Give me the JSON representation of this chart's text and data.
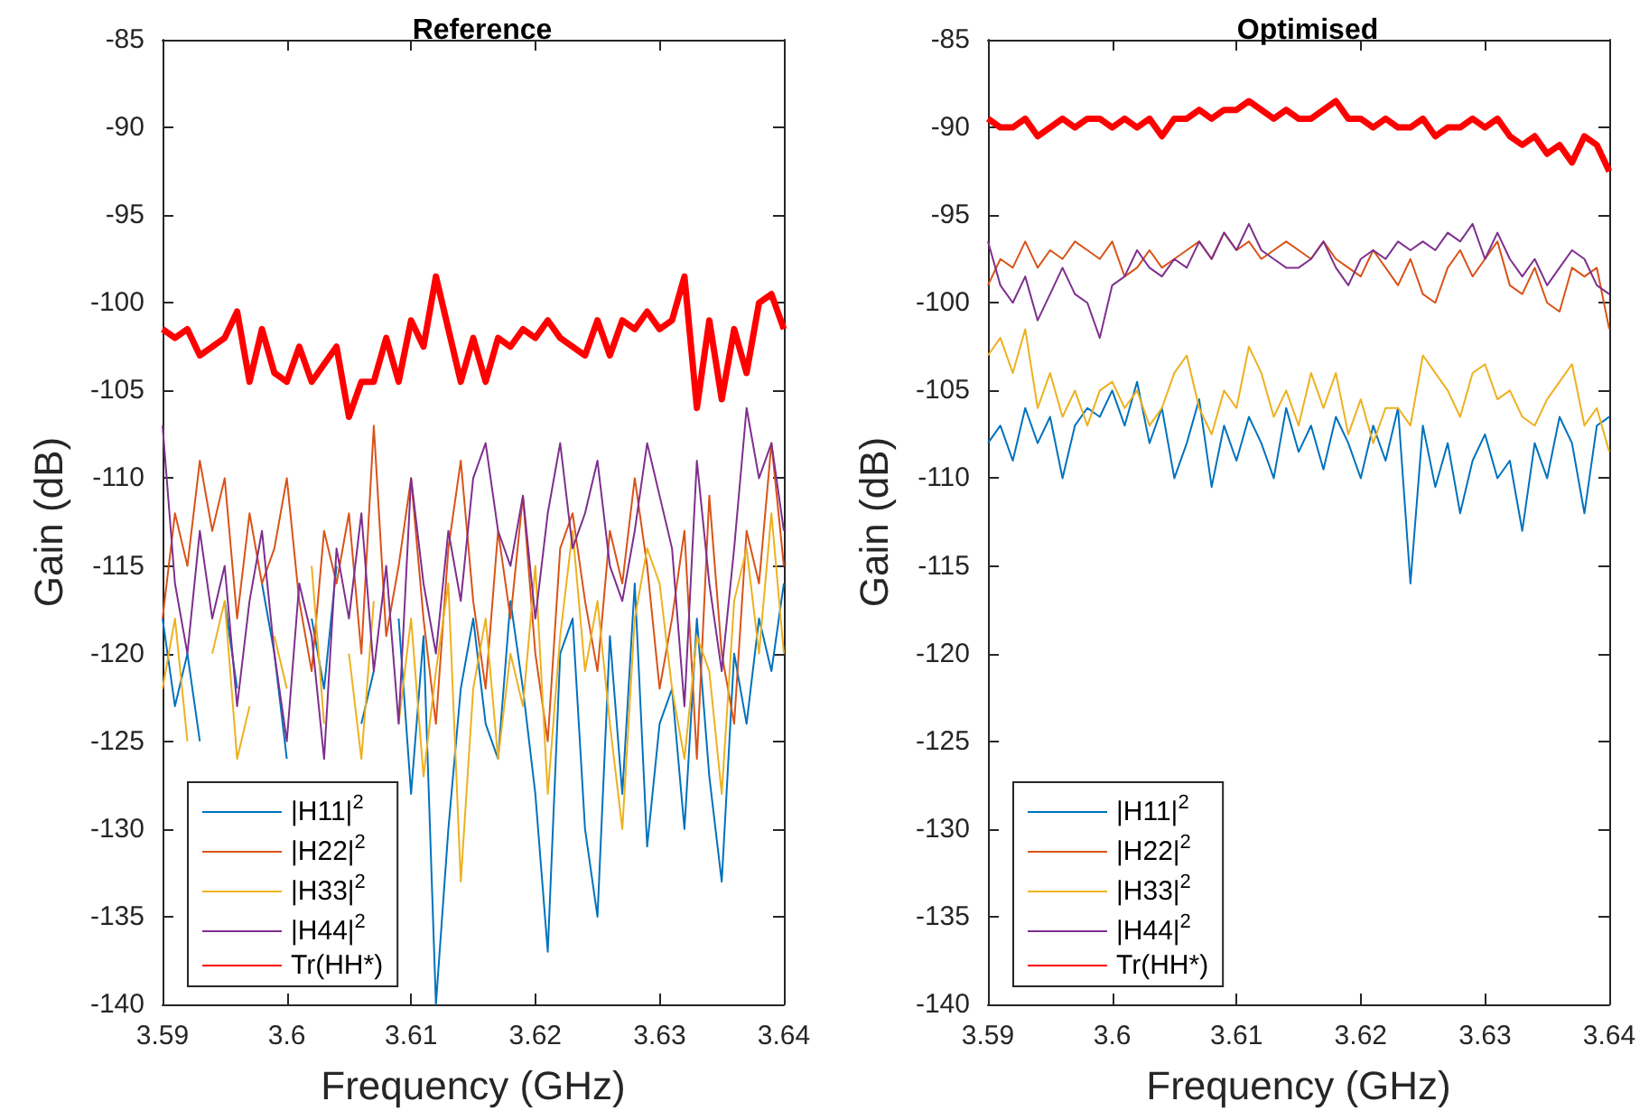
{
  "chart_data": [
    {
      "type": "line",
      "title": "Reference",
      "xlabel": "Frequency (GHz)",
      "ylabel": "Gain (dB)",
      "xlim": [
        3.59,
        3.64
      ],
      "xticks": [
        3.59,
        3.6,
        3.61,
        3.62,
        3.63,
        3.64
      ],
      "ylim": [
        -140,
        -85
      ],
      "yticks": [
        -140,
        -135,
        -130,
        -125,
        -120,
        -115,
        -110,
        -105,
        -100,
        -95,
        -90,
        -85
      ],
      "grid": false,
      "legend": "bottom left",
      "marker": "none",
      "line_style": "solid",
      "x": [
        3.59,
        3.591,
        3.592,
        3.593,
        3.594,
        3.595,
        3.596,
        3.597,
        3.598,
        3.599,
        3.6,
        3.601,
        3.602,
        3.603,
        3.604,
        3.605,
        3.606,
        3.607,
        3.608,
        3.609,
        3.61,
        3.611,
        3.612,
        3.613,
        3.614,
        3.615,
        3.616,
        3.617,
        3.618,
        3.619,
        3.62,
        3.621,
        3.622,
        3.623,
        3.624,
        3.625,
        3.626,
        3.627,
        3.628,
        3.629,
        3.63,
        3.631,
        3.632,
        3.633,
        3.634,
        3.635,
        3.636,
        3.637,
        3.638,
        3.639,
        3.64
      ],
      "series": [
        {
          "name": "|H11|$^{2}$",
          "color": "#0072bd",
          "values": [
            -118,
            -123,
            -120,
            -125,
            null,
            -117,
            -122,
            null,
            -116,
            -120,
            -126,
            null,
            -118,
            -122,
            -115,
            null,
            -124,
            -121,
            null,
            -118,
            -128,
            -119,
            -140,
            -130,
            -122,
            -118,
            -124,
            -126,
            -117,
            -122,
            -128,
            -137,
            -120,
            -118,
            -130,
            -135,
            -119,
            -128,
            -116,
            -131,
            -124,
            -122,
            -130,
            -118,
            -127,
            -133,
            -120,
            -124,
            -118,
            -121,
            -116
          ]
        },
        {
          "name": "|H22|$^{2}$",
          "color": "#d95319",
          "values": [
            -118,
            -112,
            -115,
            -109,
            -113,
            -110,
            -118,
            -112,
            -116,
            -114,
            -110,
            -117,
            -121,
            -113,
            -116,
            -112,
            -120,
            -107,
            -119,
            -115,
            -110,
            -118,
            -124,
            -114,
            -109,
            -117,
            -122,
            -113,
            -118,
            -111,
            -120,
            -125,
            -114,
            -112,
            -117,
            -121,
            -113,
            -116,
            -110,
            -115,
            -122,
            -118,
            -113,
            -126,
            -111,
            -120,
            -124,
            -113,
            -116,
            -108,
            -115
          ]
        },
        {
          "name": "|H33|$^{2}$",
          "color": "#edb120",
          "values": [
            -122,
            -118,
            -125,
            null,
            -120,
            -117,
            -126,
            -123,
            null,
            -119,
            -122,
            null,
            -115,
            -124,
            null,
            -120,
            -126,
            -117,
            null,
            -124,
            -118,
            -127,
            -121,
            -116,
            -133,
            -122,
            -118,
            -126,
            -120,
            -123,
            -115,
            -128,
            -119,
            -113,
            -121,
            -117,
            -124,
            -130,
            -118,
            -114,
            -116,
            -122,
            -126,
            -119,
            -121,
            -128,
            -117,
            -114,
            -120,
            -112,
            -120
          ]
        },
        {
          "name": "|H44|$^{2}$",
          "color": "#7e2f8e",
          "values": [
            -107,
            -116,
            -120,
            -113,
            -118,
            -115,
            -123,
            -117,
            -113,
            -120,
            -125,
            -116,
            -119,
            -126,
            -114,
            -118,
            -112,
            -121,
            -115,
            -124,
            -110,
            -116,
            -120,
            -113,
            -117,
            -110,
            -108,
            -113,
            -115,
            -111,
            -118,
            -112,
            -108,
            -114,
            -112,
            -109,
            -115,
            -117,
            -113,
            -108,
            -111,
            -114,
            -123,
            -109,
            -116,
            -121,
            -114,
            -106,
            -110,
            -108,
            -113
          ]
        },
        {
          "name": "Tr(HH*)",
          "color": "#ff0000",
          "values": [
            -101.5,
            -102,
            -101.5,
            -103,
            -102.5,
            -102,
            -100.5,
            -104.5,
            -101.5,
            -104,
            -104.5,
            -102.5,
            -104.5,
            -103.5,
            -102.5,
            -106.5,
            -104.5,
            -104.5,
            -102,
            -104.5,
            -101,
            -102.5,
            -98.5,
            -101.5,
            -104.5,
            -102,
            -104.5,
            -102,
            -102.5,
            -101.5,
            -102,
            -101,
            -102,
            -102.5,
            -103,
            -101,
            -103,
            -101,
            -101.5,
            -100.5,
            -101.5,
            -101,
            -98.5,
            -106,
            -101,
            -105.5,
            -101.5,
            -104,
            -100,
            -99.5,
            -101.5
          ]
        }
      ]
    },
    {
      "type": "line",
      "title": "Optimised",
      "xlabel": "Frequency (GHz)",
      "ylabel": "Gain (dB)",
      "xlim": [
        3.59,
        3.64
      ],
      "xticks": [
        3.59,
        3.6,
        3.61,
        3.62,
        3.63,
        3.64
      ],
      "ylim": [
        -140,
        -85
      ],
      "yticks": [
        -140,
        -135,
        -130,
        -125,
        -120,
        -115,
        -110,
        -105,
        -100,
        -95,
        -90,
        -85
      ],
      "grid": false,
      "legend": "bottom left",
      "marker": "none",
      "line_style": "solid",
      "x": [
        3.59,
        3.591,
        3.592,
        3.593,
        3.594,
        3.595,
        3.596,
        3.597,
        3.598,
        3.599,
        3.6,
        3.601,
        3.602,
        3.603,
        3.604,
        3.605,
        3.606,
        3.607,
        3.608,
        3.609,
        3.61,
        3.611,
        3.612,
        3.613,
        3.614,
        3.615,
        3.616,
        3.617,
        3.618,
        3.619,
        3.62,
        3.621,
        3.622,
        3.623,
        3.624,
        3.625,
        3.626,
        3.627,
        3.628,
        3.629,
        3.63,
        3.631,
        3.632,
        3.633,
        3.634,
        3.635,
        3.636,
        3.637,
        3.638,
        3.639,
        3.64
      ],
      "series": [
        {
          "name": "|H11|$^{2}$",
          "color": "#0072bd",
          "values": [
            -108,
            -107,
            -109,
            -106,
            -108,
            -106.5,
            -110,
            -107,
            -106,
            -106.5,
            -105,
            -107,
            -104.5,
            -108,
            -106,
            -110,
            -108,
            -105.5,
            -110.5,
            -107,
            -109,
            -106.5,
            -108,
            -110,
            -106,
            -108.5,
            -107,
            -109.5,
            -106.5,
            -108,
            -110,
            -107,
            -109,
            -106,
            -116,
            -107,
            -110.5,
            -108,
            -112,
            -109,
            -107.5,
            -110,
            -109,
            -113,
            -108,
            -110,
            -106.5,
            -108,
            -112,
            -107,
            -106.5
          ]
        },
        {
          "name": "|H22|$^{2}$",
          "color": "#d95319",
          "values": [
            -99,
            -97.5,
            -98,
            -96.5,
            -98,
            -97,
            -97.5,
            -96.5,
            -97,
            -97.5,
            -96.5,
            -98.5,
            -98,
            -97,
            -98,
            -97.5,
            -97,
            -96.5,
            -97.5,
            -96,
            -97,
            -96.5,
            -97.5,
            -97,
            -96.5,
            -97,
            -97.5,
            -96.5,
            -97.5,
            -98,
            -98.5,
            -97,
            -98,
            -99,
            -97.5,
            -99.5,
            -100,
            -98,
            -97,
            -98.5,
            -97.5,
            -96.5,
            -99,
            -99.5,
            -98,
            -100,
            -100.5,
            -98,
            -98.5,
            -98,
            -101.5
          ]
        },
        {
          "name": "|H33|$^{2}$",
          "color": "#edb120",
          "values": [
            -103,
            -102,
            -104,
            -101.5,
            -106,
            -104,
            -106.5,
            -105,
            -107,
            -105,
            -104.5,
            -106,
            -105,
            -107,
            -106,
            -104,
            -103,
            -106,
            -107.5,
            -105,
            -106,
            -102.5,
            -104,
            -106.5,
            -105,
            -107,
            -104,
            -106,
            -104,
            -107.5,
            -105.5,
            -108,
            -106,
            -106,
            -107,
            -103,
            -104,
            -105,
            -106.5,
            -104,
            -103.5,
            -105.5,
            -105,
            -106.5,
            -107,
            -105.5,
            -104.5,
            -103.5,
            -107,
            -106,
            -108.5
          ]
        },
        {
          "name": "|H44|$^{2}$",
          "color": "#7e2f8e",
          "values": [
            -96.5,
            -99,
            -100,
            -98.5,
            -101,
            -99.5,
            -98,
            -99.5,
            -100,
            -102,
            -99,
            -98.5,
            -97,
            -98,
            -98.5,
            -97.5,
            -98,
            -96.5,
            -97.5,
            -96,
            -97,
            -95.5,
            -97,
            -97.5,
            -98,
            -98,
            -97.5,
            -96.5,
            -98,
            -99,
            -97.5,
            -97,
            -97.5,
            -96.5,
            -97,
            -96.5,
            -97,
            -96,
            -96.5,
            -95.5,
            -97.5,
            -96,
            -97.5,
            -98.5,
            -97.5,
            -99,
            -98,
            -97,
            -97.5,
            -99,
            -99.5
          ]
        },
        {
          "name": "Tr(HH*)",
          "color": "#ff0000",
          "values": [
            -89.5,
            -90,
            -90,
            -89.5,
            -90.5,
            -90,
            -89.5,
            -90,
            -89.5,
            -89.5,
            -90,
            -89.5,
            -90,
            -89.5,
            -90.5,
            -89.5,
            -89.5,
            -89,
            -89.5,
            -89,
            -89,
            -88.5,
            -89,
            -89.5,
            -89,
            -89.5,
            -89.5,
            -89,
            -88.5,
            -89.5,
            -89.5,
            -90,
            -89.5,
            -90,
            -90,
            -89.5,
            -90.5,
            -90,
            -90,
            -89.5,
            -90,
            -89.5,
            -90.5,
            -91,
            -90.5,
            -91.5,
            -91,
            -92,
            -90.5,
            -91,
            -92.5
          ]
        }
      ]
    }
  ]
}
